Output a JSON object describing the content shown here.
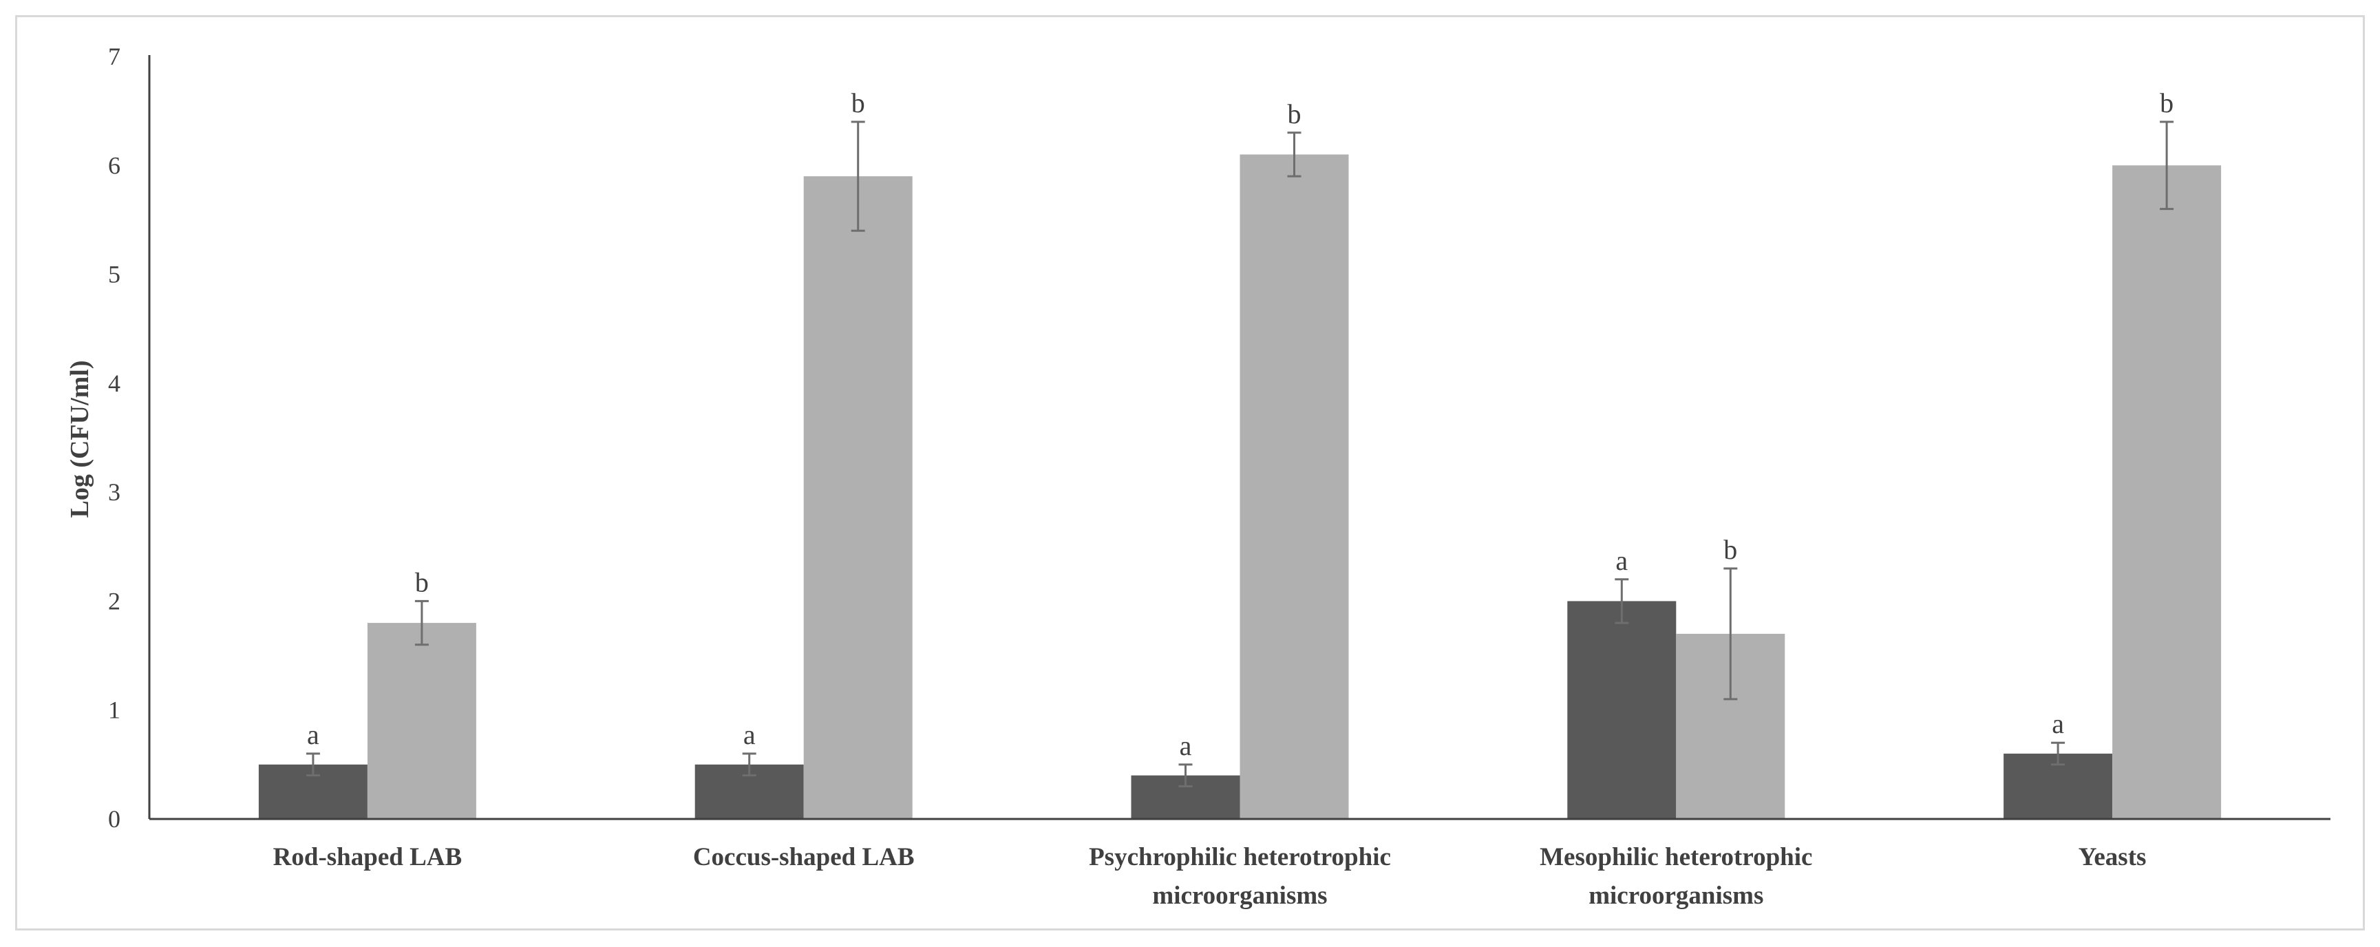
{
  "chart_data": {
    "type": "bar",
    "title": "",
    "xlabel": "",
    "ylabel": "Log (CFU/ml)",
    "ylim": [
      0,
      7
    ],
    "yticks": [
      "0",
      "1",
      "2",
      "3",
      "4",
      "5",
      "6",
      "7"
    ],
    "grid": false,
    "legend": "none",
    "categories": [
      [
        "Rod-shaped LAB"
      ],
      [
        "Coccus-shaped LAB"
      ],
      [
        "Psychrophilic heterotrophic",
        "microorganisms"
      ],
      [
        "Mesophilic heterotrophic",
        "microorganisms"
      ],
      [
        "Yeasts"
      ]
    ],
    "series": [
      {
        "color": "#595959",
        "values": [
          0.5,
          0.5,
          0.4,
          2.0,
          0.6
        ],
        "errors": [
          0.1,
          0.1,
          0.1,
          0.2,
          0.1
        ],
        "significance": [
          "a",
          "a",
          "a",
          "a",
          "a"
        ]
      },
      {
        "color": "#b0b0b0",
        "values": [
          1.8,
          5.9,
          6.1,
          1.7,
          6.0
        ],
        "errors": [
          0.2,
          0.5,
          0.2,
          0.6,
          0.4
        ],
        "significance": [
          "b",
          "b",
          "b",
          "b",
          "b"
        ]
      }
    ]
  }
}
